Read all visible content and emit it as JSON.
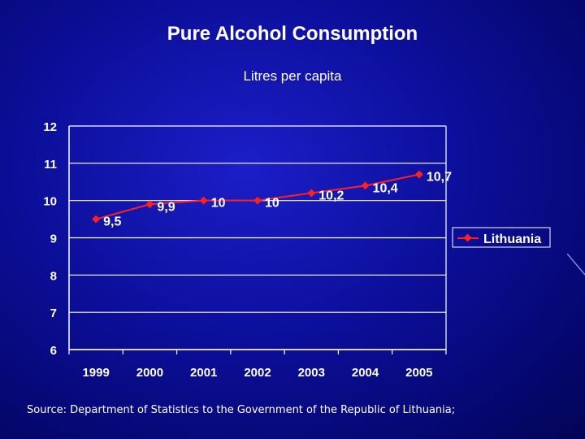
{
  "slide": {
    "title": "Pure Alcohol Consumption",
    "subtitle": "Litres per capita",
    "source": "Source: Department of Statistics to the Government of the Republic of Lithuania;"
  },
  "colors": {
    "series": "#ff2020",
    "marker": "#ff2020",
    "axis": "#ffffff",
    "text": "#ffffff"
  },
  "chart_data": {
    "type": "line",
    "title": "Pure Alcohol Consumption",
    "subtitle": "Litres per capita",
    "xlabel": "",
    "ylabel": "",
    "categories": [
      "1999",
      "2000",
      "2001",
      "2002",
      "2003",
      "2004",
      "2005"
    ],
    "series": [
      {
        "name": "Lithuania",
        "values": [
          9.5,
          9.9,
          10,
          10,
          10.2,
          10.4,
          10.7
        ],
        "labels": [
          "9,5",
          "9,9",
          "10",
          "10",
          "10,2",
          "10,4",
          "10,7"
        ]
      }
    ],
    "ylim": [
      6,
      12
    ],
    "yticks": [
      "6",
      "7",
      "8",
      "9",
      "10",
      "11",
      "12"
    ],
    "grid": true,
    "legend": "right"
  }
}
